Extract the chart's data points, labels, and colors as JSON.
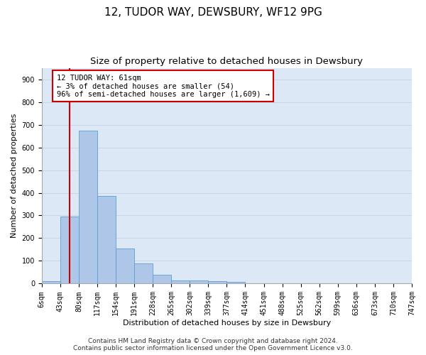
{
  "title": "12, TUDOR WAY, DEWSBURY, WF12 9PG",
  "subtitle": "Size of property relative to detached houses in Dewsbury",
  "xlabel": "Distribution of detached houses by size in Dewsbury",
  "ylabel": "Number of detached properties",
  "bin_labels": [
    "6sqm",
    "43sqm",
    "80sqm",
    "117sqm",
    "154sqm",
    "191sqm",
    "228sqm",
    "265sqm",
    "302sqm",
    "339sqm",
    "377sqm",
    "414sqm",
    "451sqm",
    "488sqm",
    "525sqm",
    "562sqm",
    "599sqm",
    "636sqm",
    "673sqm",
    "710sqm",
    "747sqm"
  ],
  "bar_values": [
    10,
    295,
    675,
    385,
    155,
    90,
    38,
    15,
    15,
    12,
    8,
    0,
    0,
    0,
    0,
    0,
    0,
    0,
    0,
    0
  ],
  "bar_color": "#aec6e8",
  "bar_edge_color": "#5a9fd4",
  "property_line_color": "#cc0000",
  "annotation_text": "12 TUDOR WAY: 61sqm\n← 3% of detached houses are smaller (54)\n96% of semi-detached houses are larger (1,609) →",
  "annotation_box_color": "#cc0000",
  "ylim": [
    0,
    950
  ],
  "yticks": [
    0,
    100,
    200,
    300,
    400,
    500,
    600,
    700,
    800,
    900
  ],
  "grid_color": "#c8d4e8",
  "background_color": "#dce8f5",
  "footer_line1": "Contains HM Land Registry data © Crown copyright and database right 2024.",
  "footer_line2": "Contains public sector information licensed under the Open Government Licence v3.0.",
  "title_fontsize": 11,
  "subtitle_fontsize": 9.5,
  "axis_label_fontsize": 8,
  "tick_fontsize": 7,
  "annotation_fontsize": 7.5,
  "footer_fontsize": 6.5
}
